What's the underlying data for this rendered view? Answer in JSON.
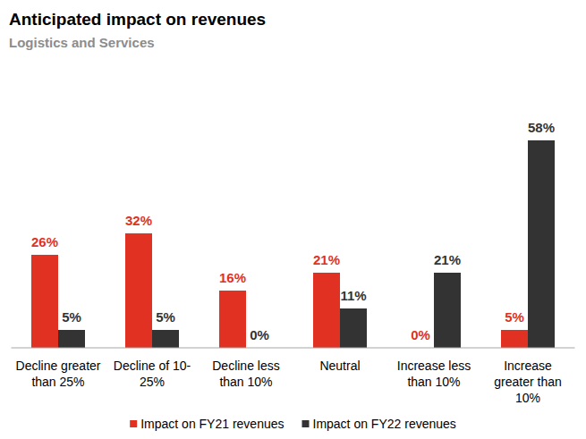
{
  "chart_data": {
    "type": "bar",
    "title": "Anticipated impact on revenues",
    "subtitle": "Logistics and Services",
    "categories": [
      "Decline greater than 25%",
      "Decline of 10-25%",
      "Decline less than 10%",
      "Neutral",
      "Increase less than 10%",
      "Increase greater than 10%"
    ],
    "series": [
      {
        "name": "Impact on FY21 revenues",
        "color": "#e03123",
        "values": [
          26,
          32,
          16,
          21,
          0,
          5
        ],
        "value_labels": [
          "26%",
          "32%",
          "16%",
          "21%",
          "0%",
          "5%"
        ]
      },
      {
        "name": "Impact on FY22 revenues",
        "color": "#333333",
        "values": [
          5,
          5,
          0,
          11,
          21,
          58
        ],
        "value_labels": [
          "5%",
          "5%",
          "0%",
          "11%",
          "21%",
          "58%"
        ]
      }
    ],
    "ylim": [
      0,
      60
    ],
    "data_labels": true,
    "tick_labels": "x",
    "grid": false,
    "legend": "bottom"
  }
}
